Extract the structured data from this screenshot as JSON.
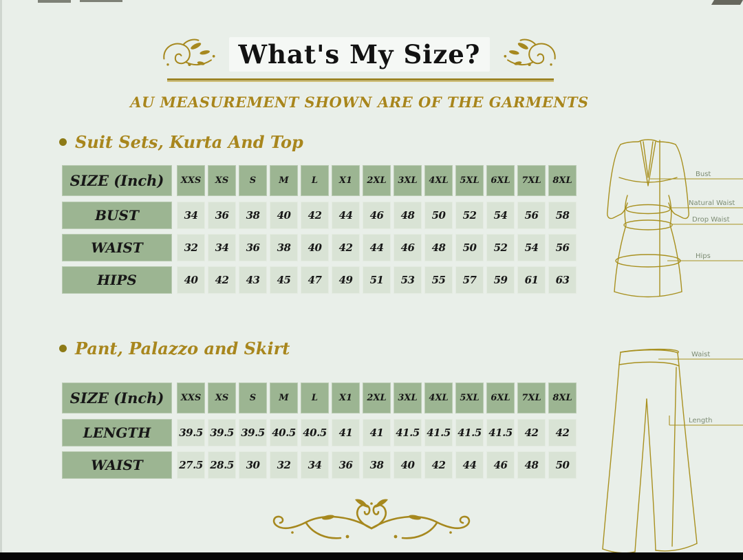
{
  "title": "What's My Size?",
  "subtitle": "AU MEASUREMENT SHOWN ARE OF THE GARMENTS",
  "size_header_label": "SIZE (Inch)",
  "sizes": [
    "XXS",
    "XS",
    "S",
    "M",
    "L",
    "X1",
    "2XL",
    "3XL",
    "4XL",
    "5XL",
    "6XL",
    "7XL",
    "8XL"
  ],
  "sections": [
    {
      "heading": "Suit Sets, Kurta And Top",
      "rows": [
        {
          "label": "BUST",
          "values": [
            "34",
            "36",
            "38",
            "40",
            "42",
            "44",
            "46",
            "48",
            "50",
            "52",
            "54",
            "56",
            "58"
          ]
        },
        {
          "label": "WAIST",
          "values": [
            "32",
            "34",
            "36",
            "38",
            "40",
            "42",
            "44",
            "46",
            "48",
            "50",
            "52",
            "54",
            "56"
          ]
        },
        {
          "label": "HIPS",
          "values": [
            "40",
            "42",
            "43",
            "45",
            "47",
            "49",
            "51",
            "53",
            "55",
            "57",
            "59",
            "61",
            "63"
          ]
        }
      ],
      "diagram": {
        "labels": {
          "bust": "Bust",
          "natural_waist": "Natural Waist",
          "drop_waist": "Drop Waist",
          "hips": "Hips"
        }
      }
    },
    {
      "heading": "Pant, Palazzo and Skirt",
      "rows": [
        {
          "label": "LENGTH",
          "values": [
            "39.5",
            "39.5",
            "39.5",
            "40.5",
            "40.5",
            "41",
            "41",
            "41.5",
            "41.5",
            "41.5",
            "41.5",
            "42",
            "42"
          ]
        },
        {
          "label": "WAIST",
          "values": [
            "27.5",
            "28.5",
            "30",
            "32",
            "34",
            "36",
            "38",
            "40",
            "42",
            "44",
            "46",
            "48",
            "50"
          ]
        }
      ],
      "diagram": {
        "labels": {
          "waist": "Waist",
          "length": "Length"
        }
      }
    }
  ],
  "colors": {
    "background": "#e9efe9",
    "gold_accent": "#a8861d",
    "table_header_green": "#9cb592",
    "table_cell_green": "#d9e3d5",
    "text_black": "#171717"
  }
}
